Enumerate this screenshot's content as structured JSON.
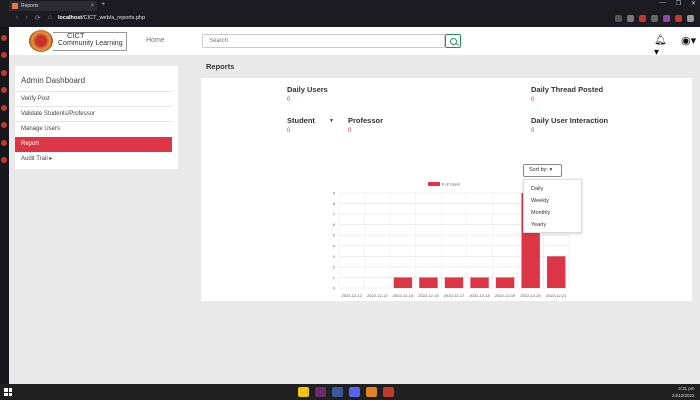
{
  "browser": {
    "tab_title": "Reports",
    "url_host": "localhost",
    "url_path": "/CICT_web/a_reports.php",
    "new_tab": "+",
    "tab_close": "×",
    "win_controls": [
      "—",
      "❐",
      "✕"
    ],
    "nav_buttons": [
      "‹",
      "›",
      "⟳",
      "⌂"
    ]
  },
  "header": {
    "logo_line1": "CICT",
    "logo_line2": "Community Learning",
    "home": "Home",
    "search_placeholder": "Search"
  },
  "section_title": "Reports",
  "admin": {
    "title": "Admin Dashboard",
    "items": [
      "Verify Post",
      "Validate Students/Professor",
      "Manage Users",
      "Report",
      "Audit Trail ▸"
    ],
    "active_index": 3
  },
  "stats": {
    "daily_users_label": "Daily Users",
    "daily_users_value": "0",
    "daily_thread_label": "Daily Thread Posted",
    "daily_thread_value": "0",
    "student_label": "Student",
    "student_value": "0",
    "professor_label": "Professor",
    "professor_value": "0",
    "interaction_label": "Daily User Interaction",
    "interaction_value": "0"
  },
  "sort": {
    "label": "Sort by:",
    "options": [
      "Daily",
      "Weekly",
      "Monthly",
      "Yearly"
    ]
  },
  "taskbar": {
    "time": "3:31 pm",
    "date": "24/12/2022"
  },
  "colors": {
    "accent": "#dc3545",
    "bar": "#dc3545"
  },
  "chart_data": {
    "type": "bar",
    "categories": [
      "2022-12-12",
      "2022-12-13",
      "2022-12-15",
      "2022-12-16",
      "2022-12-17",
      "2022-12-18",
      "2022-12-19",
      "2022-12-20",
      "2022-12-21"
    ],
    "series": [
      {
        "name": "# of Users",
        "values": [
          0,
          0,
          1,
          1,
          1,
          1,
          1,
          9,
          3
        ]
      }
    ],
    "ylim": [
      0,
      9
    ],
    "yticks": [
      0,
      1,
      2,
      3,
      4,
      5,
      6,
      7,
      8,
      9
    ],
    "grid": true,
    "legend": "top-center"
  }
}
